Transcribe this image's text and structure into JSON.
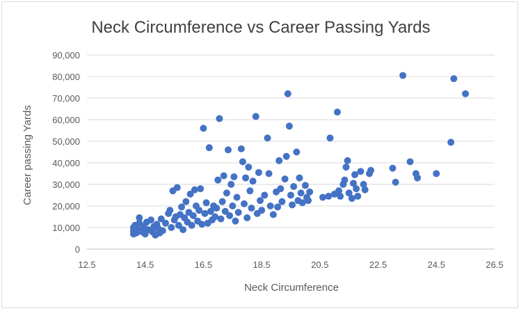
{
  "chart_data": {
    "type": "scatter",
    "title": "Neck Circumference vs Career Passing Yards",
    "xlabel": "Neck Circumference",
    "ylabel": "Career passing Yards",
    "xlim": [
      12.5,
      26.5
    ],
    "ylim": [
      0,
      90000
    ],
    "x_ticks": [
      "12.5",
      "14.5",
      "16.5",
      "18.5",
      "20.5",
      "22.5",
      "24.5",
      "26.5"
    ],
    "y_ticks": [
      "0",
      "10,000",
      "20,000",
      "30,000",
      "40,000",
      "50,000",
      "60,000",
      "70,000",
      "80,000",
      "90,000"
    ],
    "grid": "horizontal",
    "legend": "none",
    "colors": {
      "marker": "#4472c4",
      "grid": "#d9d9d9",
      "axis": "#bfbfbf",
      "title": "#404040",
      "tick": "#595959"
    },
    "series": [
      {
        "points": [
          {
            "x": 14.1,
            "y": 7000
          },
          {
            "x": 14.1,
            "y": 8500
          },
          {
            "x": 14.1,
            "y": 10000
          },
          {
            "x": 14.15,
            "y": 11000
          },
          {
            "x": 14.2,
            "y": 7500
          },
          {
            "x": 14.25,
            "y": 9000
          },
          {
            "x": 14.3,
            "y": 12000
          },
          {
            "x": 14.3,
            "y": 14500
          },
          {
            "x": 14.4,
            "y": 8000
          },
          {
            "x": 14.45,
            "y": 10500
          },
          {
            "x": 14.5,
            "y": 7000
          },
          {
            "x": 14.55,
            "y": 12500
          },
          {
            "x": 14.6,
            "y": 9000
          },
          {
            "x": 14.7,
            "y": 13500
          },
          {
            "x": 14.75,
            "y": 8000
          },
          {
            "x": 14.8,
            "y": 10500
          },
          {
            "x": 14.85,
            "y": 6500
          },
          {
            "x": 14.9,
            "y": 11500
          },
          {
            "x": 14.95,
            "y": 9500
          },
          {
            "x": 15.0,
            "y": 7500
          },
          {
            "x": 15.05,
            "y": 14000
          },
          {
            "x": 15.1,
            "y": 8500
          },
          {
            "x": 15.2,
            "y": 12000
          },
          {
            "x": 15.3,
            "y": 16500
          },
          {
            "x": 15.35,
            "y": 18000
          },
          {
            "x": 15.4,
            "y": 10000
          },
          {
            "x": 15.45,
            "y": 27000
          },
          {
            "x": 15.5,
            "y": 13500
          },
          {
            "x": 15.55,
            "y": 15000
          },
          {
            "x": 15.6,
            "y": 28500
          },
          {
            "x": 15.65,
            "y": 11000
          },
          {
            "x": 15.7,
            "y": 16000
          },
          {
            "x": 15.75,
            "y": 19500
          },
          {
            "x": 15.8,
            "y": 9000
          },
          {
            "x": 15.85,
            "y": 14500
          },
          {
            "x": 15.9,
            "y": 22000
          },
          {
            "x": 15.95,
            "y": 12500
          },
          {
            "x": 16.0,
            "y": 17000
          },
          {
            "x": 16.05,
            "y": 25500
          },
          {
            "x": 16.1,
            "y": 11000
          },
          {
            "x": 16.15,
            "y": 15500
          },
          {
            "x": 16.2,
            "y": 27500
          },
          {
            "x": 16.25,
            "y": 20000
          },
          {
            "x": 16.3,
            "y": 13000
          },
          {
            "x": 16.35,
            "y": 18000
          },
          {
            "x": 16.4,
            "y": 28000
          },
          {
            "x": 16.45,
            "y": 11500
          },
          {
            "x": 16.5,
            "y": 56000
          },
          {
            "x": 16.55,
            "y": 16500
          },
          {
            "x": 16.6,
            "y": 21500
          },
          {
            "x": 16.65,
            "y": 12000
          },
          {
            "x": 16.7,
            "y": 47000
          },
          {
            "x": 16.75,
            "y": 17500
          },
          {
            "x": 16.8,
            "y": 13500
          },
          {
            "x": 16.85,
            "y": 20000
          },
          {
            "x": 16.9,
            "y": 15000
          },
          {
            "x": 16.95,
            "y": 19000
          },
          {
            "x": 17.0,
            "y": 32000
          },
          {
            "x": 17.05,
            "y": 60500
          },
          {
            "x": 17.1,
            "y": 14000
          },
          {
            "x": 17.15,
            "y": 22000
          },
          {
            "x": 17.2,
            "y": 34000
          },
          {
            "x": 17.25,
            "y": 17500
          },
          {
            "x": 17.3,
            "y": 26000
          },
          {
            "x": 17.35,
            "y": 46000
          },
          {
            "x": 17.4,
            "y": 15500
          },
          {
            "x": 17.45,
            "y": 30000
          },
          {
            "x": 17.5,
            "y": 20000
          },
          {
            "x": 17.55,
            "y": 33500
          },
          {
            "x": 17.6,
            "y": 13000
          },
          {
            "x": 17.65,
            "y": 24000
          },
          {
            "x": 17.7,
            "y": 17000
          },
          {
            "x": 17.8,
            "y": 46500
          },
          {
            "x": 17.85,
            "y": 40500
          },
          {
            "x": 17.9,
            "y": 21000
          },
          {
            "x": 17.95,
            "y": 33000
          },
          {
            "x": 18.0,
            "y": 14500
          },
          {
            "x": 18.05,
            "y": 38000
          },
          {
            "x": 18.1,
            "y": 27000
          },
          {
            "x": 18.15,
            "y": 19000
          },
          {
            "x": 18.2,
            "y": 31500
          },
          {
            "x": 18.3,
            "y": 61500
          },
          {
            "x": 18.35,
            "y": 16500
          },
          {
            "x": 18.4,
            "y": 35500
          },
          {
            "x": 18.45,
            "y": 22500
          },
          {
            "x": 18.5,
            "y": 18000
          },
          {
            "x": 18.6,
            "y": 25000
          },
          {
            "x": 18.7,
            "y": 51500
          },
          {
            "x": 18.75,
            "y": 35000
          },
          {
            "x": 18.8,
            "y": 20000
          },
          {
            "x": 18.9,
            "y": 16000
          },
          {
            "x": 19.0,
            "y": 26500
          },
          {
            "x": 19.05,
            "y": 19500
          },
          {
            "x": 19.1,
            "y": 41000
          },
          {
            "x": 19.15,
            "y": 28000
          },
          {
            "x": 19.2,
            "y": 22000
          },
          {
            "x": 19.3,
            "y": 32500
          },
          {
            "x": 19.35,
            "y": 43000
          },
          {
            "x": 19.4,
            "y": 72000
          },
          {
            "x": 19.45,
            "y": 57000
          },
          {
            "x": 19.5,
            "y": 25000
          },
          {
            "x": 19.55,
            "y": 20500
          },
          {
            "x": 19.6,
            "y": 29000
          },
          {
            "x": 19.7,
            "y": 45000
          },
          {
            "x": 19.75,
            "y": 22500
          },
          {
            "x": 19.8,
            "y": 33000
          },
          {
            "x": 19.85,
            "y": 26000
          },
          {
            "x": 19.9,
            "y": 21500
          },
          {
            "x": 20.0,
            "y": 29500
          },
          {
            "x": 20.05,
            "y": 24000
          },
          {
            "x": 20.1,
            "y": 22500
          },
          {
            "x": 20.15,
            "y": 26500
          },
          {
            "x": 20.6,
            "y": 24000
          },
          {
            "x": 20.8,
            "y": 24500
          },
          {
            "x": 20.85,
            "y": 51500
          },
          {
            "x": 21.0,
            "y": 25500
          },
          {
            "x": 21.1,
            "y": 63500
          },
          {
            "x": 21.15,
            "y": 27000
          },
          {
            "x": 21.2,
            "y": 24500
          },
          {
            "x": 21.3,
            "y": 30000
          },
          {
            "x": 21.35,
            "y": 32000
          },
          {
            "x": 21.4,
            "y": 38000
          },
          {
            "x": 21.45,
            "y": 41000
          },
          {
            "x": 21.5,
            "y": 26000
          },
          {
            "x": 21.6,
            "y": 23500
          },
          {
            "x": 21.65,
            "y": 30500
          },
          {
            "x": 21.7,
            "y": 34500
          },
          {
            "x": 21.75,
            "y": 28000
          },
          {
            "x": 21.8,
            "y": 24500
          },
          {
            "x": 21.9,
            "y": 36000
          },
          {
            "x": 22.0,
            "y": 30000
          },
          {
            "x": 22.05,
            "y": 27500
          },
          {
            "x": 22.2,
            "y": 35000
          },
          {
            "x": 22.25,
            "y": 36500
          },
          {
            "x": 23.0,
            "y": 37500
          },
          {
            "x": 23.1,
            "y": 31000
          },
          {
            "x": 23.35,
            "y": 80500
          },
          {
            "x": 23.6,
            "y": 40500
          },
          {
            "x": 23.8,
            "y": 35000
          },
          {
            "x": 23.85,
            "y": 33000
          },
          {
            "x": 24.5,
            "y": 35000
          },
          {
            "x": 25.0,
            "y": 49500
          },
          {
            "x": 25.1,
            "y": 79000
          },
          {
            "x": 25.5,
            "y": 72000
          }
        ]
      }
    ]
  }
}
